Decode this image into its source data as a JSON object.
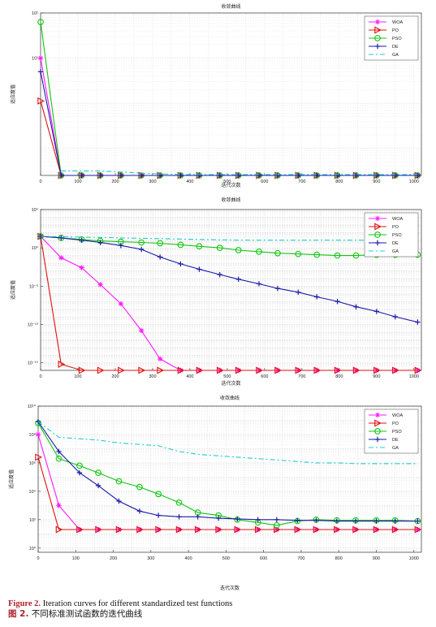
{
  "caption": {
    "en_label": "Figure 2.",
    "en_text": " Iteration curves for different standardized test functions",
    "zh_label": "图 2.",
    "zh_text": " 不同标准测试函数的迭代曲线"
  },
  "colors": {
    "WOA": "#ff1aff",
    "PO": "#e01010",
    "PSO": "#12c612",
    "DE": "#1a1aa8",
    "GA": "#22cccc"
  },
  "chart_data": [
    {
      "type": "line",
      "title": "收敛曲线",
      "xlabel": "迭代次数",
      "ylabel": "适应度值",
      "x_ticks": [
        0,
        100,
        200,
        300,
        400,
        500,
        600,
        700,
        800,
        900,
        1000
      ],
      "xlim": [
        0,
        1020
      ],
      "y_scale": "log",
      "ylim_exp": [
        -1.6,
        2.0
      ],
      "y_ticks": [
        {
          "exp": 2,
          "label": "10²"
        },
        {
          "exp": 1,
          "label": "10¹"
        }
      ],
      "grid": true,
      "legend_position": "top-right",
      "series": [
        {
          "name": "WOA",
          "marker": "asterisk",
          "dash": "",
          "x": [
            0,
            55,
            110,
            160,
            215,
            270,
            320,
            375,
            425,
            480,
            530,
            585,
            635,
            690,
            740,
            795,
            845,
            900,
            950,
            1010
          ],
          "logy": [
            1.0,
            -1.6,
            -1.6,
            -1.6,
            -1.6,
            -1.6,
            -1.6,
            -1.6,
            -1.6,
            -1.6,
            -1.6,
            -1.6,
            -1.6,
            -1.6,
            -1.6,
            -1.6,
            -1.6,
            -1.6,
            -1.6,
            -1.6
          ]
        },
        {
          "name": "PO",
          "marker": "triangle",
          "dash": "",
          "x": [
            0,
            55,
            110,
            160,
            215,
            270,
            320,
            375,
            425,
            480,
            530,
            585,
            635,
            690,
            740,
            795,
            845,
            900,
            950,
            1010
          ],
          "logy": [
            0.05,
            -1.6,
            -1.6,
            -1.6,
            -1.6,
            -1.6,
            -1.6,
            -1.6,
            -1.6,
            -1.6,
            -1.6,
            -1.6,
            -1.6,
            -1.6,
            -1.6,
            -1.6,
            -1.6,
            -1.6,
            -1.6,
            -1.6
          ]
        },
        {
          "name": "PSO",
          "marker": "circle",
          "dash": "",
          "x": [
            0,
            55,
            110,
            160,
            215,
            270,
            320,
            375,
            425,
            480,
            530,
            585,
            635,
            690,
            740,
            795,
            845,
            900,
            950,
            1010
          ],
          "logy": [
            1.8,
            -1.6,
            -1.6,
            -1.6,
            -1.6,
            -1.6,
            -1.6,
            -1.6,
            -1.6,
            -1.6,
            -1.6,
            -1.6,
            -1.6,
            -1.6,
            -1.6,
            -1.6,
            -1.6,
            -1.6,
            -1.6,
            -1.6
          ]
        },
        {
          "name": "DE",
          "marker": "plus",
          "dash": "",
          "x": [
            0,
            55,
            110,
            160,
            215,
            270,
            320,
            375,
            425,
            480,
            530,
            585,
            635,
            690,
            740,
            795,
            845,
            900,
            950,
            1010
          ],
          "logy": [
            0.7,
            -1.6,
            -1.6,
            -1.6,
            -1.6,
            -1.6,
            -1.6,
            -1.6,
            -1.6,
            -1.6,
            -1.6,
            -1.6,
            -1.6,
            -1.6,
            -1.6,
            -1.6,
            -1.6,
            -1.6,
            -1.6,
            -1.6
          ]
        },
        {
          "name": "GA",
          "marker": "none",
          "dash": "6,3,2,3",
          "x": [
            55,
            160,
            270,
            375,
            480,
            585,
            690,
            795,
            900,
            1010
          ],
          "logy": [
            -1.5,
            -1.5,
            -1.55,
            -1.58,
            -1.58,
            -1.58,
            -1.58,
            -1.58,
            -1.58,
            -1.58
          ]
        }
      ]
    },
    {
      "type": "line",
      "title": "收敛曲线",
      "xlabel": "迭代次数",
      "ylabel": "适应度值",
      "x_ticks": [
        0,
        100,
        200,
        300,
        400,
        500,
        600,
        700,
        800,
        900,
        1000
      ],
      "xlim": [
        0,
        1020
      ],
      "y_scale": "log",
      "ylim_exp": [
        -16,
        5
      ],
      "y_ticks": [
        {
          "exp": 5,
          "label": "10⁵"
        },
        {
          "exp": 0,
          "label": "10⁰"
        },
        {
          "exp": -5,
          "label": "10⁻⁵"
        },
        {
          "exp": -10,
          "label": "10⁻¹⁰"
        },
        {
          "exp": -15,
          "label": "10⁻¹⁵"
        }
      ],
      "grid": true,
      "legend_position": "top-right",
      "series": [
        {
          "name": "WOA",
          "marker": "asterisk",
          "dash": "",
          "x": [
            0,
            55,
            110,
            160,
            215,
            270,
            320,
            375,
            425,
            480,
            530,
            585,
            635,
            690,
            740,
            795,
            845,
            900,
            950,
            1010
          ],
          "logy": [
            1.5,
            -1.3,
            -2.6,
            -4.8,
            -7.3,
            -10.8,
            -14.5,
            -17.0,
            -17.0,
            -17.0,
            -17.0,
            -17.0,
            -17.0,
            -17.0,
            -17.0,
            -17.0,
            -17.0,
            -17.0,
            -17.0,
            -17.0
          ]
        },
        {
          "name": "PO",
          "marker": "triangle",
          "dash": "",
          "x": [
            0,
            55,
            110,
            160,
            215,
            270,
            320,
            375,
            425,
            480,
            530,
            585,
            635,
            690,
            740,
            795,
            845,
            900,
            950,
            1010
          ],
          "logy": [
            1.5,
            -15.2,
            -18.3,
            -18.3,
            -18.3,
            -18.3,
            -18.3,
            -18.3,
            -18.3,
            -18.3,
            -18.3,
            -18.3,
            -18.3,
            -18.3,
            -18.3,
            -18.3,
            -18.3,
            -18.3,
            -18.3,
            -18.3
          ]
        },
        {
          "name": "PSO",
          "marker": "circle",
          "dash": "",
          "x": [
            0,
            55,
            110,
            160,
            215,
            270,
            320,
            375,
            425,
            480,
            530,
            585,
            635,
            690,
            740,
            795,
            845,
            900,
            950,
            1010
          ],
          "logy": [
            1.5,
            1.3,
            1.1,
            0.9,
            0.8,
            0.7,
            0.6,
            0.4,
            0.2,
            0.0,
            -0.3,
            -0.5,
            -0.7,
            -0.8,
            -0.9,
            -1.0,
            -1.0,
            -0.9,
            -0.9,
            -0.9
          ]
        },
        {
          "name": "DE",
          "marker": "plus",
          "dash": "",
          "x": [
            0,
            55,
            110,
            160,
            215,
            270,
            320,
            375,
            425,
            480,
            530,
            585,
            635,
            690,
            740,
            795,
            845,
            900,
            950,
            1010
          ],
          "logy": [
            1.5,
            1.3,
            1.0,
            0.7,
            0.3,
            -0.2,
            -1.2,
            -2.1,
            -2.8,
            -3.5,
            -4.1,
            -4.7,
            -5.3,
            -5.8,
            -6.4,
            -7.0,
            -7.7,
            -8.3,
            -9.0,
            -9.7
          ]
        },
        {
          "name": "GA",
          "marker": "none",
          "dash": "6,3,2,3",
          "x": [
            0,
            110,
            215,
            320,
            425,
            530,
            635,
            740,
            845,
            950,
            1010
          ],
          "logy": [
            1.5,
            1.4,
            1.3,
            1.2,
            1.1,
            1.0,
            1.0,
            1.0,
            1.0,
            1.0,
            1.0
          ]
        }
      ]
    },
    {
      "type": "line",
      "title": "收敛曲线",
      "xlabel": "迭代次数",
      "ylabel": "适应度值",
      "x_ticks": [
        0,
        100,
        200,
        300,
        400,
        500,
        600,
        700,
        800,
        900,
        1000
      ],
      "xlim": [
        0,
        1020
      ],
      "y_scale": "log",
      "ylim_exp": [
        -0.3,
        10
      ],
      "y_ticks": [
        {
          "exp": 10,
          "label": "10¹⁰"
        },
        {
          "exp": 8,
          "label": "10⁸"
        },
        {
          "exp": 6,
          "label": "10⁶"
        },
        {
          "exp": 4,
          "label": "10⁴"
        },
        {
          "exp": 2,
          "label": "10²"
        },
        {
          "exp": 0,
          "label": "10⁰"
        }
      ],
      "grid": true,
      "legend_position": "top-right",
      "series": [
        {
          "name": "WOA",
          "marker": "asterisk",
          "dash": "",
          "x": [
            0,
            55,
            110,
            160,
            215,
            270,
            320,
            375,
            425,
            480,
            530,
            585,
            635,
            690,
            740,
            795,
            845,
            900,
            950,
            1010
          ],
          "logy": [
            8.0,
            3.0,
            1.3,
            1.3,
            1.3,
            1.3,
            1.3,
            1.3,
            1.3,
            1.3,
            1.3,
            1.3,
            1.3,
            1.3,
            1.3,
            1.3,
            1.3,
            1.3,
            1.3,
            1.3
          ]
        },
        {
          "name": "PO",
          "marker": "triangle",
          "dash": "",
          "x": [
            0,
            55,
            110,
            160,
            215,
            270,
            320,
            375,
            425,
            480,
            530,
            585,
            635,
            690,
            740,
            795,
            845,
            900,
            950,
            1010
          ],
          "logy": [
            6.4,
            1.3,
            1.3,
            1.3,
            1.3,
            1.3,
            1.3,
            1.3,
            1.3,
            1.3,
            1.3,
            1.3,
            1.3,
            1.3,
            1.3,
            1.3,
            1.3,
            1.3,
            1.3,
            1.3
          ]
        },
        {
          "name": "PSO",
          "marker": "circle",
          "dash": "",
          "x": [
            0,
            55,
            110,
            160,
            215,
            270,
            320,
            375,
            425,
            480,
            530,
            585,
            635,
            690,
            740,
            795,
            845,
            900,
            950,
            1010
          ],
          "logy": [
            8.8,
            6.3,
            5.8,
            5.3,
            4.7,
            4.3,
            3.8,
            3.2,
            2.5,
            2.3,
            2.0,
            1.8,
            1.6,
            1.9,
            2.0,
            1.95,
            1.95,
            1.95,
            1.95,
            1.9
          ]
        },
        {
          "name": "DE",
          "marker": "plus",
          "dash": "",
          "x": [
            0,
            55,
            110,
            160,
            215,
            270,
            320,
            375,
            425,
            480,
            530,
            585,
            635,
            690,
            740,
            795,
            845,
            900,
            950,
            1010
          ],
          "logy": [
            8.9,
            6.8,
            5.3,
            4.4,
            3.3,
            2.6,
            2.3,
            2.2,
            2.2,
            2.1,
            2.05,
            2.0,
            2.0,
            1.95,
            1.95,
            1.9,
            1.9,
            1.9,
            1.9,
            1.9
          ]
        },
        {
          "name": "GA",
          "marker": "none",
          "dash": "6,3,2,3",
          "x": [
            0,
            55,
            110,
            160,
            215,
            270,
            320,
            375,
            425,
            480,
            530,
            585,
            635,
            690,
            740,
            795,
            845,
            900,
            950,
            1010
          ],
          "logy": [
            8.9,
            7.8,
            7.7,
            7.6,
            7.4,
            7.3,
            7.2,
            6.8,
            6.6,
            6.5,
            6.4,
            6.3,
            6.2,
            6.1,
            6.0,
            6.0,
            5.95,
            5.95,
            5.95,
            5.95
          ]
        }
      ]
    }
  ]
}
